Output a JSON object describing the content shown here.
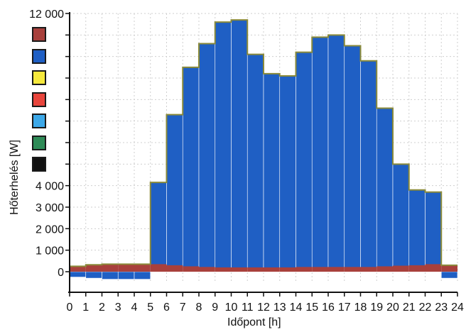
{
  "chart_data": {
    "type": "bar",
    "xlabel": "Időpont [h]",
    "ylabel": "Hőterhelés [W]",
    "xlim": [
      0,
      24
    ],
    "ylim": [
      -500,
      12000
    ],
    "x_ticks": [
      "0",
      "1",
      "2",
      "3",
      "4",
      "5",
      "6",
      "7",
      "8",
      "9",
      "10",
      "11",
      "12",
      "13",
      "14",
      "15",
      "16",
      "17",
      "18",
      "19",
      "20",
      "21",
      "22",
      "23",
      "24"
    ],
    "y_ticks": [
      "0",
      "1 000",
      "2 000",
      "3 000",
      "4 000",
      "12 000"
    ],
    "grid": true,
    "series": [
      {
        "color": "#1f5fc4",
        "values": [
          -250,
          -300,
          -350,
          -350,
          -350,
          4150,
          7300,
          9500,
          10600,
          11600,
          11700,
          10100,
          9200,
          9100,
          10200,
          10900,
          11000,
          10500,
          9800,
          7600,
          5000,
          3800,
          3700,
          -300
        ]
      },
      {
        "color": "#a8403c",
        "values": [
          250,
          320,
          350,
          350,
          350,
          350,
          300,
          250,
          220,
          200,
          200,
          200,
          200,
          200,
          220,
          220,
          220,
          220,
          220,
          250,
          280,
          300,
          350,
          300
        ]
      }
    ],
    "legend": {
      "placement": "top-left",
      "colors": [
        "#a8403c",
        "#1f5fc4",
        "#f5e83c",
        "#e8453c",
        "#3ca8e8",
        "#2e8b57",
        "#111111"
      ]
    }
  }
}
